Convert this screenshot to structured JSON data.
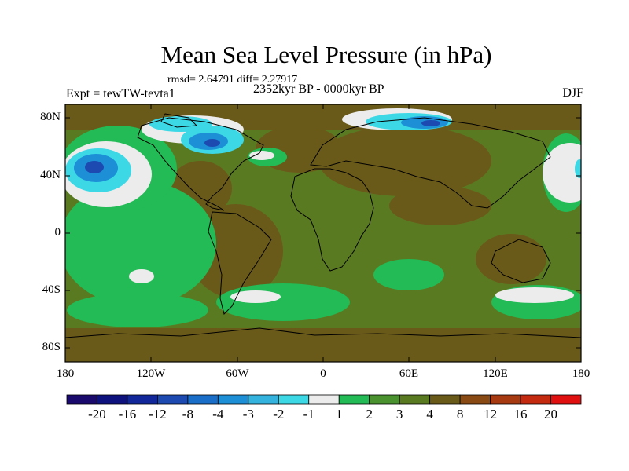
{
  "figure": {
    "title": "Mean Sea Level Pressure (in hPa)",
    "stats": "rmsd= 2.64791 diff= 2.27917",
    "experiment": "Expt = tewTW-tevta1",
    "period": "2352kyr BP - 0000kyr BP",
    "season": "DJF"
  },
  "axes": {
    "lat_labels": [
      "80N",
      "40N",
      "0",
      "40S",
      "80S"
    ],
    "lon_labels": [
      "180",
      "120W",
      "60W",
      "0",
      "60E",
      "120E",
      "180"
    ]
  },
  "colorbar": {
    "colors": [
      "#1a0a6e",
      "#0d127f",
      "#12289a",
      "#1c4ab0",
      "#1a6ec8",
      "#1c8fd6",
      "#34b3de",
      "#3cd8e6",
      "#ececec",
      "#22bb55",
      "#4a9130",
      "#5a7a22",
      "#6a5a1a",
      "#8a4a14",
      "#a83a12",
      "#c42a10",
      "#e01010"
    ],
    "labels": [
      "-20",
      "-16",
      "-12",
      "-8",
      "-4",
      "-3",
      "-2",
      "-1",
      "1",
      "2",
      "3",
      "4",
      "8",
      "12",
      "16",
      "20"
    ]
  }
}
